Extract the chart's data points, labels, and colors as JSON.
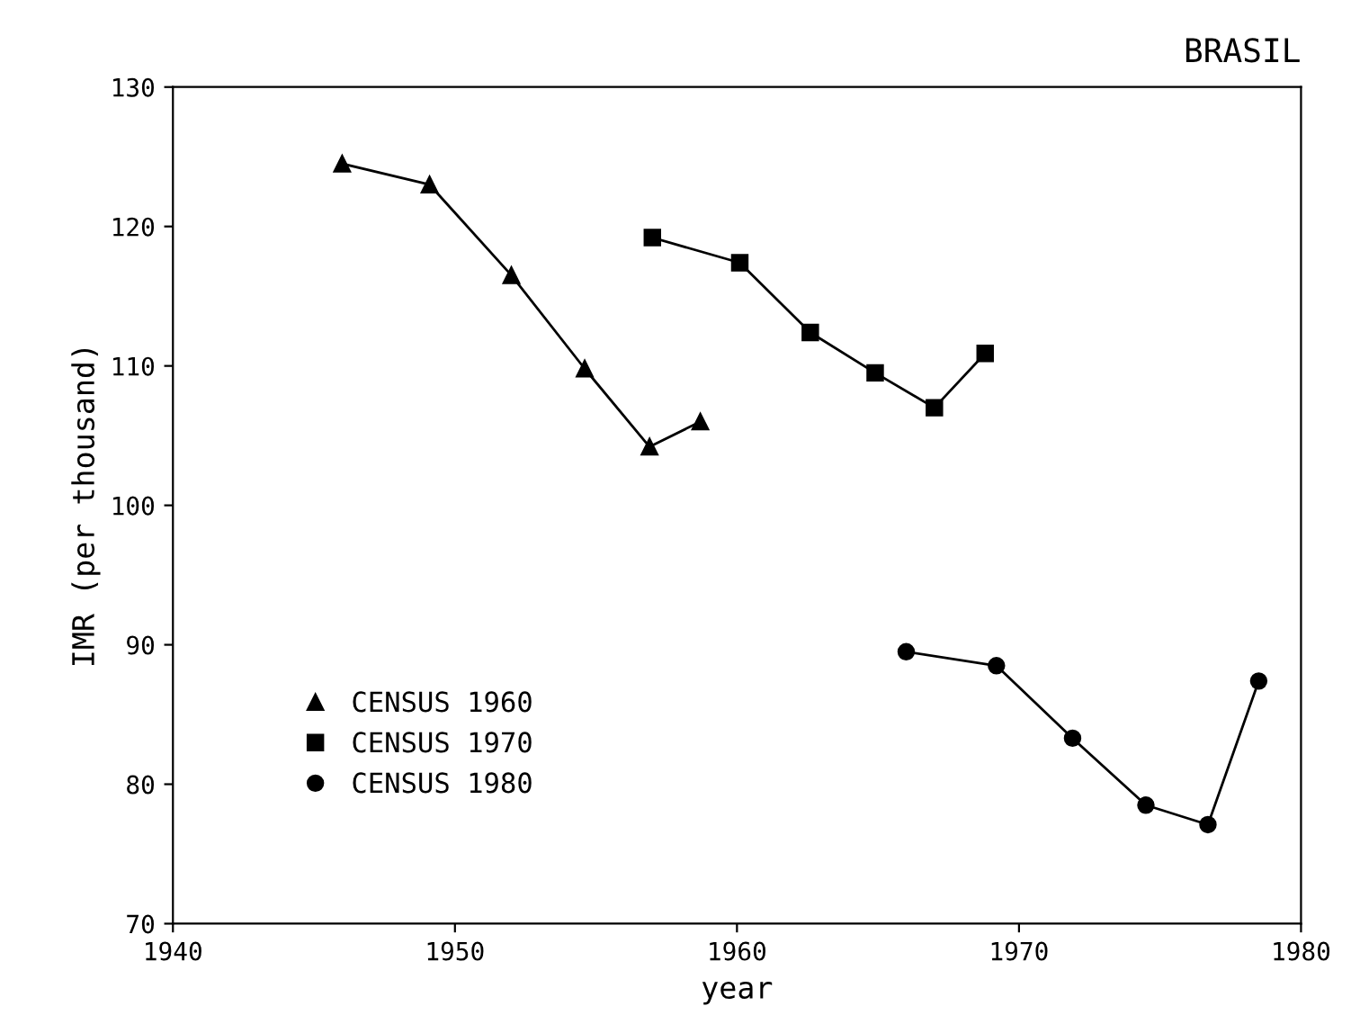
{
  "chart_data": {
    "type": "line",
    "title": "BRASIL",
    "xlabel": "year",
    "ylabel": "IMR (per thousand)",
    "xlim": [
      1940,
      1980
    ],
    "ylim": [
      70,
      130
    ],
    "xticks": [
      1940,
      1950,
      1960,
      1970,
      1980
    ],
    "yticks": [
      70,
      80,
      90,
      100,
      110,
      120,
      130
    ],
    "grid": false,
    "legend": "bottom left",
    "series": [
      {
        "name": "CENSUS 1960",
        "color": "#000000",
        "marker": "triangle",
        "x": [
          1946.0,
          1949.1,
          1952.0,
          1954.6,
          1956.9,
          1958.7
        ],
        "values": [
          124.5,
          123.0,
          116.5,
          109.8,
          104.2,
          106.0
        ]
      },
      {
        "name": "CENSUS 1970",
        "color": "#000000",
        "marker": "square",
        "x": [
          1957.0,
          1960.1,
          1962.6,
          1964.9,
          1967.0,
          1968.8
        ],
        "values": [
          119.2,
          117.4,
          112.4,
          109.5,
          107.0,
          110.9
        ]
      },
      {
        "name": "CENSUS 1980",
        "color": "#000000",
        "marker": "circle",
        "x": [
          1966.0,
          1969.2,
          1971.9,
          1974.5,
          1976.7,
          1978.5
        ],
        "values": [
          89.5,
          88.5,
          83.3,
          78.5,
          77.1,
          87.4
        ]
      }
    ]
  }
}
